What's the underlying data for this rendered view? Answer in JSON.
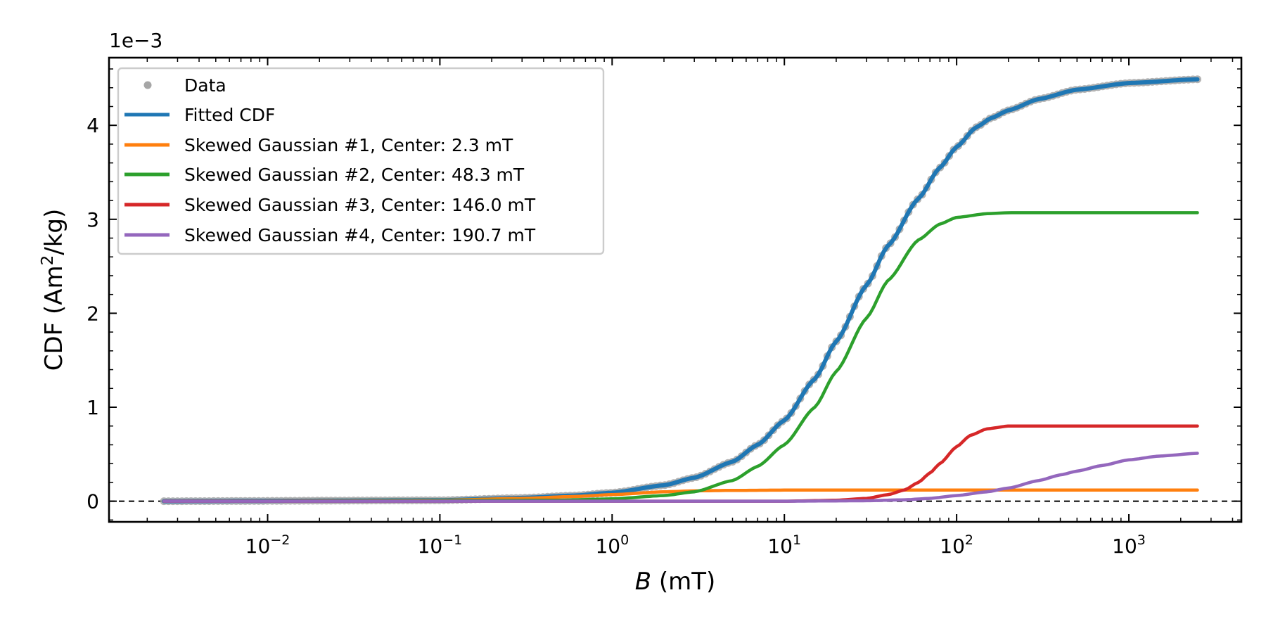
{
  "chart_data": {
    "type": "line",
    "xlabel": "B (mT)",
    "ylabel": "CDF (Am²/kg)",
    "ylabel_main": "CDF (Am",
    "ylabel_sup": "2",
    "ylabel_tail": "/kg)",
    "xlabel_var": "B",
    "xlabel_unit": " (mT)",
    "offset_text": "1e−3",
    "x_scale": "log",
    "xlim": [
      0.0012,
      4500
    ],
    "ylim": [
      -0.22,
      4.72
    ],
    "x_ticks": [
      {
        "value": 0.01,
        "base": "10",
        "exp": "−2"
      },
      {
        "value": 0.1,
        "base": "10",
        "exp": "−1"
      },
      {
        "value": 1,
        "base": "10",
        "exp": "0"
      },
      {
        "value": 10,
        "base": "10",
        "exp": "1"
      },
      {
        "value": 100,
        "base": "10",
        "exp": "2"
      },
      {
        "value": 1000,
        "base": "10",
        "exp": "3"
      }
    ],
    "y_ticks": [
      {
        "value": 0,
        "label": "0"
      },
      {
        "value": 1,
        "label": "1"
      },
      {
        "value": 2,
        "label": "2"
      },
      {
        "value": 3,
        "label": "3"
      },
      {
        "value": 4,
        "label": "4"
      }
    ],
    "y_minor_step": 0.2,
    "reference_line": {
      "y": 0,
      "style": "dashed",
      "color": "#000000"
    },
    "grid": false,
    "legend_position": "top-left",
    "data_points": {
      "name": "Data",
      "color": "#a6a6a6",
      "x_range": [
        0.0025,
        2500
      ],
      "note_x_sampling": "log-spaced",
      "count": 230
    },
    "series": [
      {
        "name": "Fitted CDF",
        "color": "#1f77b4",
        "x": [
          0.0025,
          0.1,
          0.3,
          0.6,
          1,
          2,
          3,
          5,
          7,
          10,
          15,
          20,
          30,
          40,
          60,
          80,
          100,
          130,
          160,
          200,
          300,
          500,
          1000,
          2500
        ],
        "y": [
          0.0,
          0.01,
          0.035,
          0.06,
          0.09,
          0.17,
          0.25,
          0.42,
          0.6,
          0.86,
          1.3,
          1.7,
          2.3,
          2.72,
          3.22,
          3.55,
          3.77,
          3.98,
          4.08,
          4.16,
          4.28,
          4.38,
          4.45,
          4.49
        ]
      },
      {
        "name": "Skewed Gaussian #1, Center: 2.3 mT",
        "color": "#ff7f0e",
        "x": [
          0.0025,
          0.1,
          0.3,
          0.6,
          1,
          2,
          3,
          5,
          10,
          100,
          2500
        ],
        "y": [
          0.0,
          0.01,
          0.03,
          0.05,
          0.07,
          0.1,
          0.11,
          0.115,
          0.118,
          0.118,
          0.118
        ]
      },
      {
        "name": "Skewed Gaussian #2, Center: 48.3 mT",
        "color": "#2ca02c",
        "x": [
          0.0025,
          0.5,
          1,
          2,
          3,
          5,
          7,
          10,
          15,
          20,
          30,
          40,
          60,
          80,
          100,
          150,
          200,
          300,
          500,
          2500
        ],
        "y": [
          0.0,
          0.01,
          0.025,
          0.06,
          0.1,
          0.22,
          0.37,
          0.6,
          1.0,
          1.38,
          1.95,
          2.35,
          2.78,
          2.95,
          3.02,
          3.06,
          3.07,
          3.07,
          3.07,
          3.07
        ]
      },
      {
        "name": "Skewed Gaussian #3, Center: 146.0 mT",
        "color": "#d62728",
        "x": [
          0.0025,
          10,
          20,
          30,
          40,
          50,
          60,
          70,
          80,
          100,
          120,
          150,
          200,
          300,
          500,
          2500
        ],
        "y": [
          0.0,
          0.0,
          0.01,
          0.03,
          0.07,
          0.12,
          0.2,
          0.3,
          0.4,
          0.58,
          0.7,
          0.77,
          0.8,
          0.8,
          0.8,
          0.8
        ]
      },
      {
        "name": "Skewed Gaussian #4, Center: 190.7 mT",
        "color": "#9467bd",
        "x": [
          0.0025,
          10,
          30,
          50,
          70,
          100,
          150,
          200,
          300,
          400,
          500,
          700,
          1000,
          1500,
          2500
        ],
        "y": [
          0.0,
          0.0,
          0.005,
          0.015,
          0.03,
          0.06,
          0.1,
          0.14,
          0.22,
          0.28,
          0.32,
          0.38,
          0.44,
          0.48,
          0.51
        ]
      }
    ]
  }
}
